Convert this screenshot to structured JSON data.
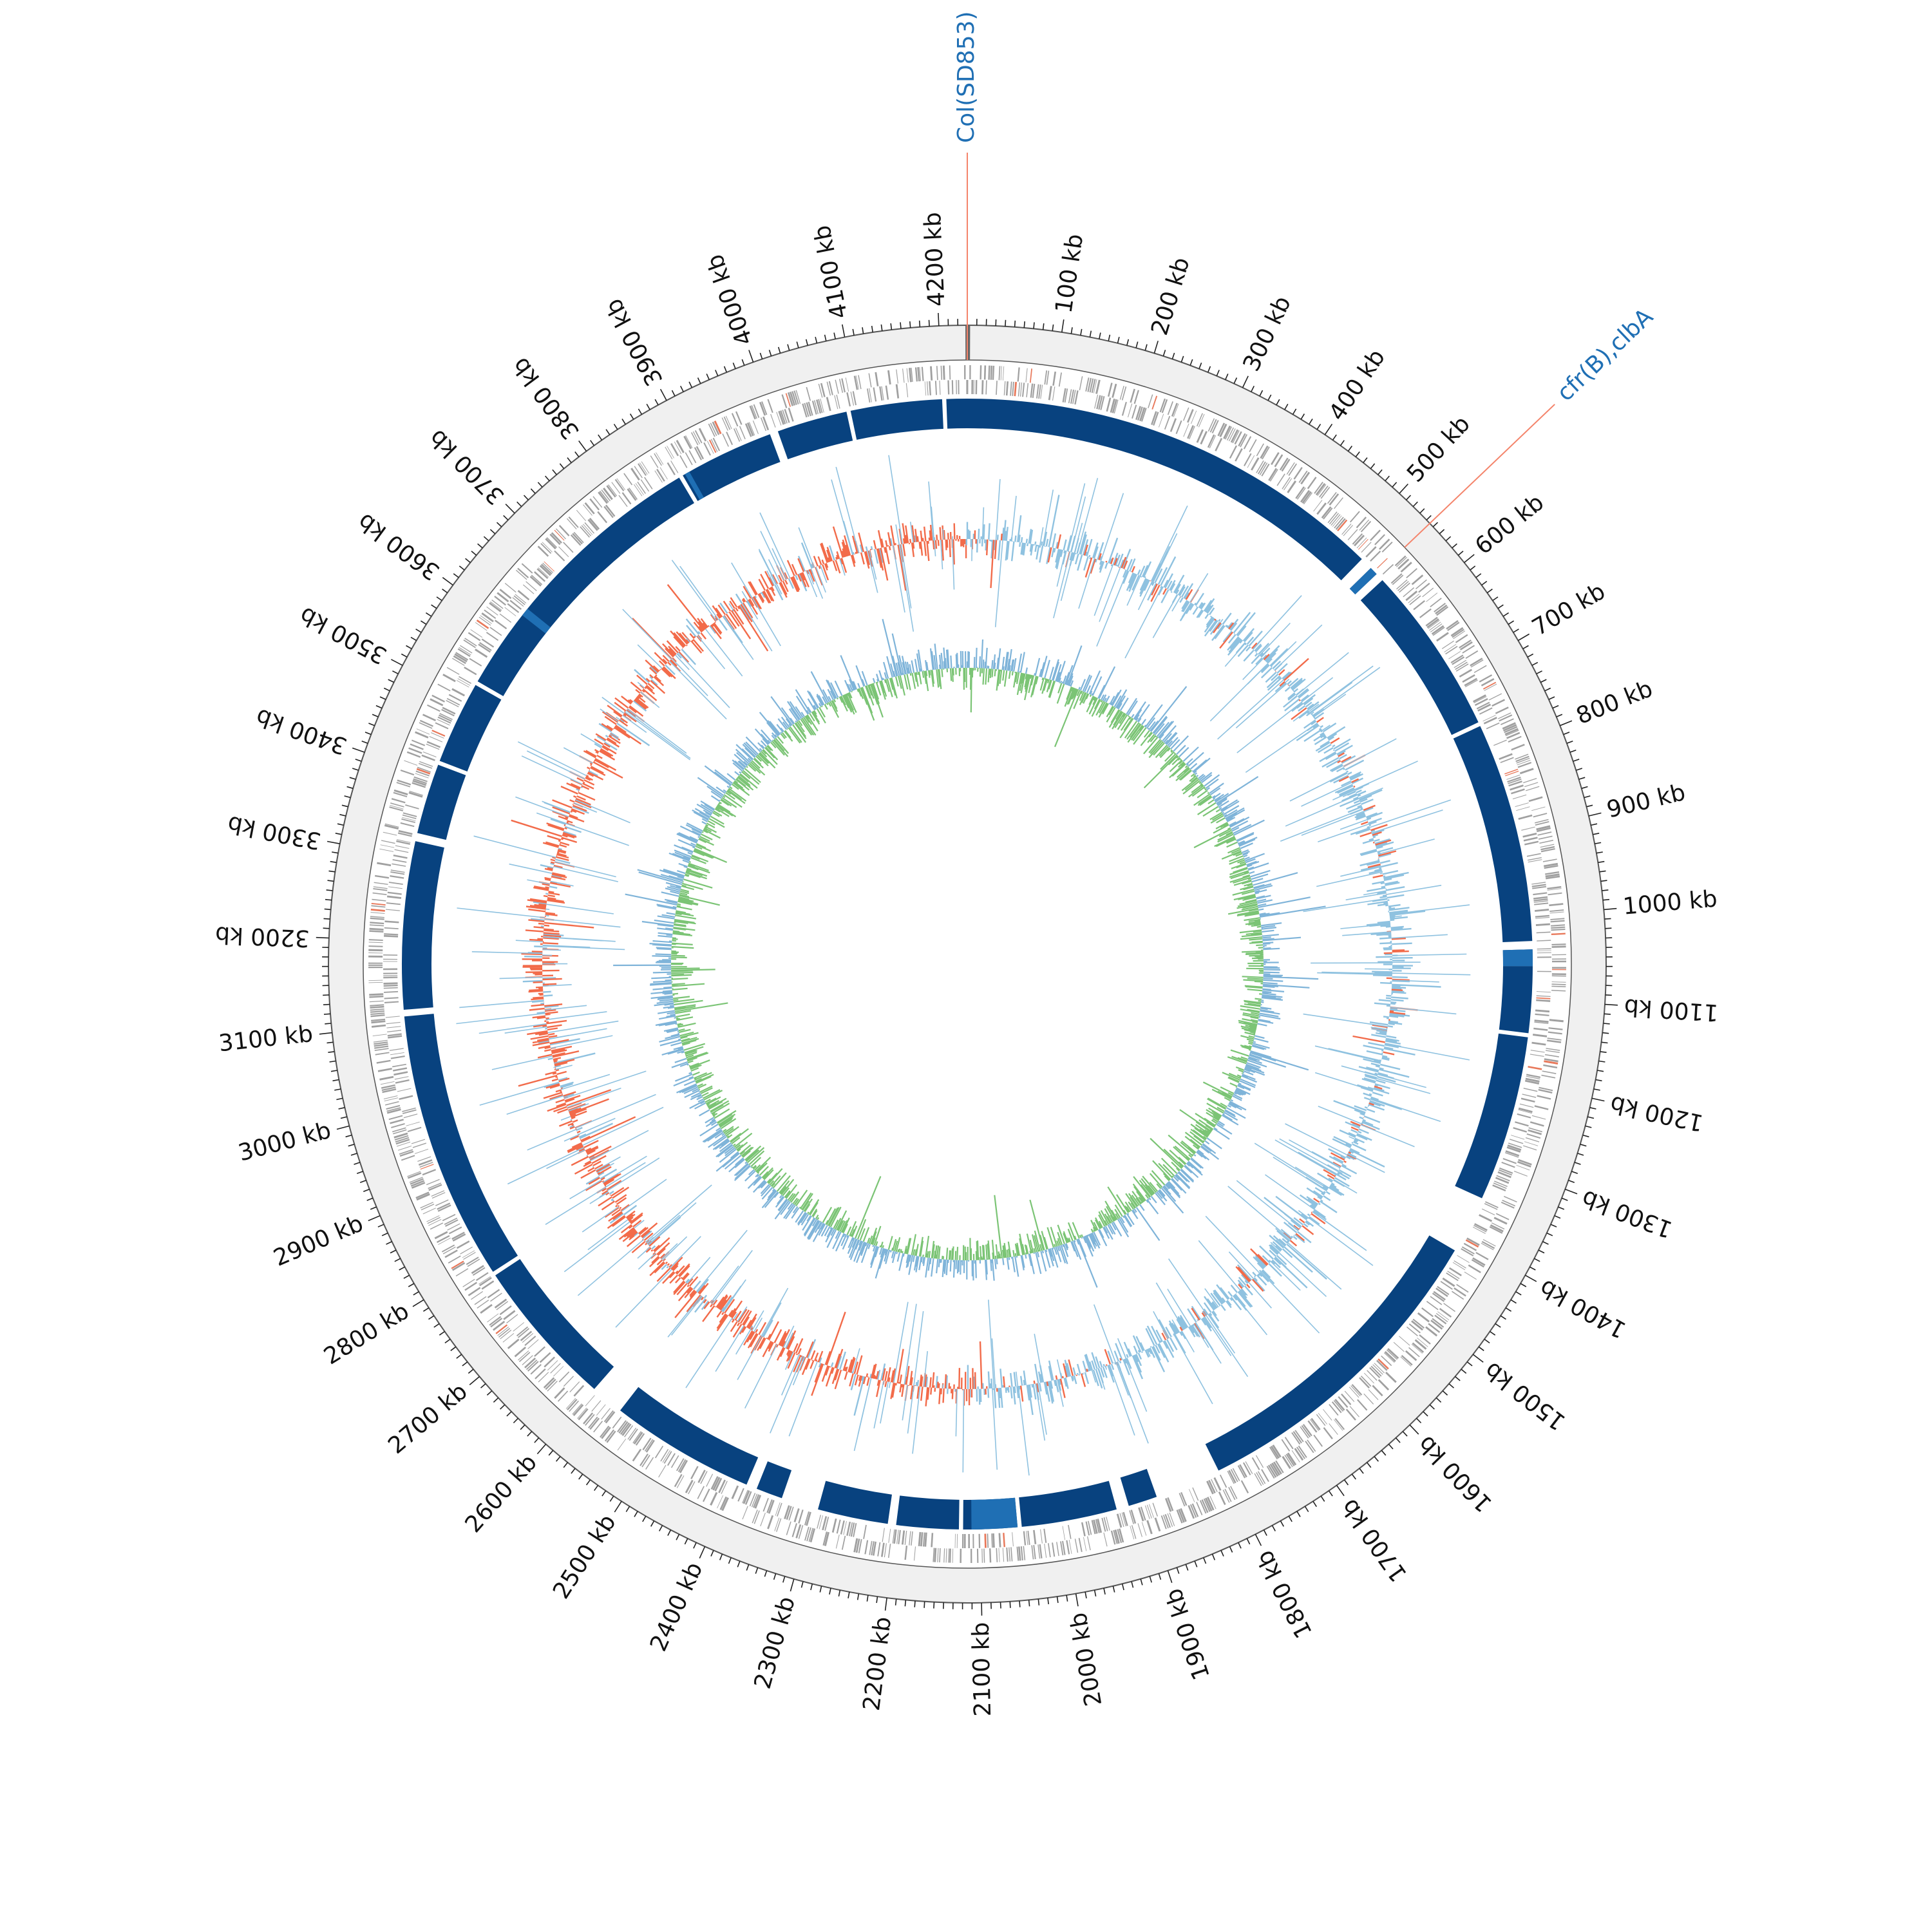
{
  "map": {
    "genome_length_kb": 4230,
    "tick_unit": "kb",
    "colors": {
      "backbone": "#f0f0f0",
      "backbone_line": "#555555",
      "gene_track": "#a0a0a0",
      "gene_highlight": "#e8785a",
      "blast_track": "#08427f",
      "blast_light": "#1f6fb4",
      "gc_content_pos": "#8fc2e0",
      "gc_content_neg": "#f26b4a",
      "gc_skew_pos": "#7bc475",
      "gc_skew_neg": "#7fb4d9",
      "annotation_line": "#f4846b",
      "annotation_text": "#1f6fb4",
      "label_text": "#111111"
    }
  },
  "ticks": [
    {
      "kb": 100,
      "label": "100 kb"
    },
    {
      "kb": 200,
      "label": "200 kb"
    },
    {
      "kb": 300,
      "label": "300 kb"
    },
    {
      "kb": 400,
      "label": "400 kb"
    },
    {
      "kb": 500,
      "label": "500 kb"
    },
    {
      "kb": 600,
      "label": "600 kb"
    },
    {
      "kb": 700,
      "label": "700 kb"
    },
    {
      "kb": 800,
      "label": "800 kb"
    },
    {
      "kb": 900,
      "label": "900 kb"
    },
    {
      "kb": 1000,
      "label": "1000 kb"
    },
    {
      "kb": 1100,
      "label": "1100 kb"
    },
    {
      "kb": 1200,
      "label": "1200 kb"
    },
    {
      "kb": 1300,
      "label": "1300 kb"
    },
    {
      "kb": 1400,
      "label": "1400 kb"
    },
    {
      "kb": 1500,
      "label": "1500 kb"
    },
    {
      "kb": 1600,
      "label": "1600 kb"
    },
    {
      "kb": 1700,
      "label": "1700 kb"
    },
    {
      "kb": 1800,
      "label": "1800 kb"
    },
    {
      "kb": 1900,
      "label": "1900 kb"
    },
    {
      "kb": 2000,
      "label": "2000 kb"
    },
    {
      "kb": 2100,
      "label": "2100 kb"
    },
    {
      "kb": 2200,
      "label": "2200 kb"
    },
    {
      "kb": 2300,
      "label": "2300 kb"
    },
    {
      "kb": 2400,
      "label": "2400 kb"
    },
    {
      "kb": 2500,
      "label": "2500 kb"
    },
    {
      "kb": 2600,
      "label": "2600 kb"
    },
    {
      "kb": 2700,
      "label": "2700 kb"
    },
    {
      "kb": 2800,
      "label": "2800 kb"
    },
    {
      "kb": 2900,
      "label": "2900 kb"
    },
    {
      "kb": 3000,
      "label": "3000 kb"
    },
    {
      "kb": 3100,
      "label": "3100 kb"
    },
    {
      "kb": 3200,
      "label": "3200 kb"
    },
    {
      "kb": 3300,
      "label": "3300 kb"
    },
    {
      "kb": 3400,
      "label": "3400 kb"
    },
    {
      "kb": 3500,
      "label": "3500 kb"
    },
    {
      "kb": 3600,
      "label": "3600 kb"
    },
    {
      "kb": 3700,
      "label": "3700 kb"
    },
    {
      "kb": 3800,
      "label": "3800 kb"
    },
    {
      "kb": 3900,
      "label": "3900 kb"
    },
    {
      "kb": 4000,
      "label": "4000 kb"
    },
    {
      "kb": 4100,
      "label": "4100 kb"
    },
    {
      "kb": 4200,
      "label": "4200 kb"
    }
  ],
  "annotations": [
    {
      "kb": 0,
      "label": "Col(SD853)"
    },
    {
      "kb": 545,
      "label": "cfr(B),clbA"
    }
  ],
  "blast_segments_kb": [
    [
      0,
      520
    ],
    [
      535,
      545
    ],
    [
      555,
      760
    ],
    [
      765,
      1030
    ],
    [
      1040,
      1060
    ],
    [
      1060,
      1140
    ],
    [
      1145,
      1345
    ],
    [
      1415,
      1805
    ],
    [
      1885,
      1920
    ],
    [
      1935,
      2050
    ],
    [
      2055,
      2120
    ],
    [
      2125,
      2200
    ],
    [
      2210,
      2295
    ],
    [
      2340,
      2372
    ],
    [
      2385,
      2560
    ],
    [
      2600,
      2780
    ],
    [
      2785,
      3110
    ],
    [
      3118,
      3320
    ],
    [
      3330,
      3415
    ],
    [
      3420,
      3520
    ],
    [
      3525,
      3870
    ],
    [
      3875,
      3990
    ],
    [
      4000,
      4085
    ],
    [
      4090,
      4200
    ],
    [
      4205,
      4230
    ]
  ],
  "blast_light_segments_kb": [
    [
      535,
      545
    ],
    [
      1040,
      1060
    ],
    [
      2055,
      2110
    ],
    [
      3620,
      3630
    ],
    [
      3878,
      3884
    ]
  ]
}
